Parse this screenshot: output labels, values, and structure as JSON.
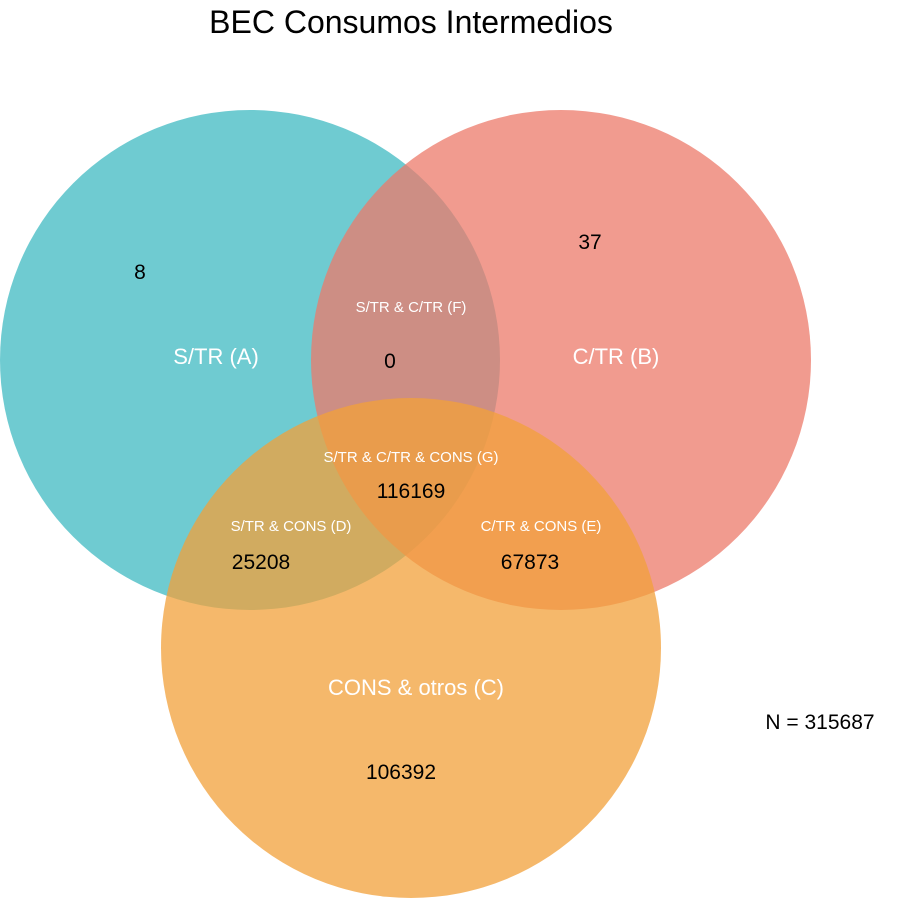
{
  "title": "BEC Consumos Intermedios",
  "total": "N = 315687",
  "sets": {
    "a": {
      "label": "S/TR (A)",
      "color": "#3fb9c1"
    },
    "b": {
      "label": "C/TR (B)",
      "color": "#ec7a6a"
    },
    "c": {
      "label": "CONS & otros (C)",
      "color": "#f1a03a"
    }
  },
  "regions": {
    "a_only": {
      "count": "8"
    },
    "b_only": {
      "count": "37"
    },
    "c_only": {
      "count": "106392"
    },
    "f": {
      "label": "S/TR & C/TR (F)",
      "count": "0"
    },
    "d": {
      "label": "S/TR & CONS (D)",
      "count": "25208"
    },
    "e": {
      "label": "C/TR & CONS (E)",
      "count": "67873"
    },
    "g": {
      "label": "S/TR & C/TR & CONS (G)",
      "count": "116169"
    }
  }
}
